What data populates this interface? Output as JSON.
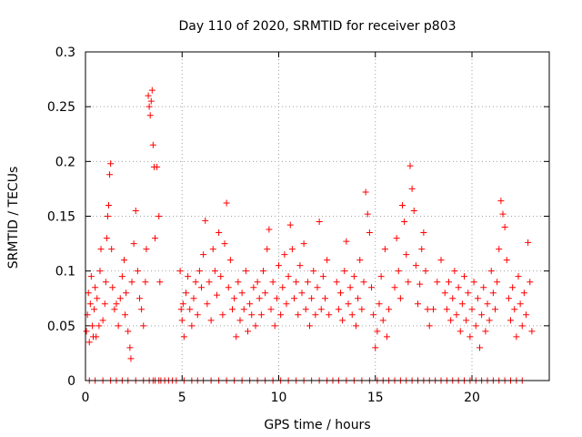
{
  "chart_data": {
    "type": "scatter",
    "title": "Day 110 of 2020, SRMTID for receiver p803",
    "xlabel": "GPS time / hours",
    "ylabel": "SRMTID / TECUs",
    "xlim": [
      0,
      24
    ],
    "ylim": [
      0,
      0.3
    ],
    "xticks": [
      0,
      5,
      10,
      15,
      20
    ],
    "xtick_labels": [
      "0",
      "5",
      "10",
      "15",
      "20"
    ],
    "yticks": [
      0,
      0.05,
      0.1,
      0.15,
      0.2,
      0.25,
      0.3
    ],
    "ytick_labels": [
      "0",
      "0.05",
      "0.1",
      "0.15",
      "0.2",
      "0.25",
      "0.3"
    ],
    "grid": true,
    "marker": "+",
    "color": "#ff0000",
    "series": [
      {
        "name": "SRMTID",
        "points": [
          [
            0.05,
            0.045
          ],
          [
            0.1,
            0.06
          ],
          [
            0.15,
            0.08
          ],
          [
            0.2,
            0.035
          ],
          [
            0.25,
            0.07
          ],
          [
            0.3,
            0.095
          ],
          [
            0.35,
            0.05
          ],
          [
            0.4,
            0.04
          ],
          [
            0.45,
            0.065
          ],
          [
            0.5,
            0.085
          ],
          [
            0.55,
            0.04
          ],
          [
            0.6,
            0.075
          ],
          [
            0.7,
            0.05
          ],
          [
            0.75,
            0.1
          ],
          [
            0.8,
            0.12
          ],
          [
            0.9,
            0.055
          ],
          [
            1.0,
            0.07
          ],
          [
            1.05,
            0.09
          ],
          [
            1.1,
            0.13
          ],
          [
            1.15,
            0.15
          ],
          [
            1.2,
            0.16
          ],
          [
            1.25,
            0.188
          ],
          [
            1.3,
            0.198
          ],
          [
            1.35,
            0.12
          ],
          [
            1.4,
            0.085
          ],
          [
            1.5,
            0.065
          ],
          [
            1.6,
            0.07
          ],
          [
            1.7,
            0.05
          ],
          [
            1.8,
            0.075
          ],
          [
            1.9,
            0.095
          ],
          [
            2.0,
            0.11
          ],
          [
            2.05,
            0.06
          ],
          [
            2.1,
            0.08
          ],
          [
            2.2,
            0.045
          ],
          [
            2.3,
            0.03
          ],
          [
            2.35,
            0.02
          ],
          [
            2.4,
            0.09
          ],
          [
            2.5,
            0.125
          ],
          [
            2.6,
            0.155
          ],
          [
            2.7,
            0.1
          ],
          [
            2.8,
            0.075
          ],
          [
            2.9,
            0.065
          ],
          [
            3.0,
            0.05
          ],
          [
            3.1,
            0.09
          ],
          [
            3.15,
            0.12
          ],
          [
            3.25,
            0.26
          ],
          [
            3.3,
            0.25
          ],
          [
            3.35,
            0.242
          ],
          [
            3.4,
            0.255
          ],
          [
            3.45,
            0.265
          ],
          [
            3.5,
            0.215
          ],
          [
            3.55,
            0.195
          ],
          [
            3.6,
            0.13
          ],
          [
            3.7,
            0.195
          ],
          [
            3.8,
            0.15
          ],
          [
            3.85,
            0.09
          ],
          [
            4.9,
            0.1
          ],
          [
            4.95,
            0.065
          ],
          [
            5.0,
            0.055
          ],
          [
            5.05,
            0.07
          ],
          [
            5.1,
            0.04
          ],
          [
            5.2,
            0.08
          ],
          [
            5.3,
            0.095
          ],
          [
            5.4,
            0.065
          ],
          [
            5.5,
            0.05
          ],
          [
            5.6,
            0.075
          ],
          [
            5.7,
            0.09
          ],
          [
            5.8,
            0.06
          ],
          [
            5.9,
            0.1
          ],
          [
            6.0,
            0.085
          ],
          [
            6.1,
            0.115
          ],
          [
            6.2,
            0.146
          ],
          [
            6.3,
            0.07
          ],
          [
            6.4,
            0.09
          ],
          [
            6.5,
            0.055
          ],
          [
            6.6,
            0.12
          ],
          [
            6.7,
            0.1
          ],
          [
            6.8,
            0.078
          ],
          [
            6.9,
            0.135
          ],
          [
            7.0,
            0.095
          ],
          [
            7.1,
            0.06
          ],
          [
            7.2,
            0.125
          ],
          [
            7.3,
            0.162
          ],
          [
            7.4,
            0.085
          ],
          [
            7.5,
            0.11
          ],
          [
            7.6,
            0.065
          ],
          [
            7.7,
            0.075
          ],
          [
            7.8,
            0.04
          ],
          [
            7.9,
            0.09
          ],
          [
            8.0,
            0.055
          ],
          [
            8.1,
            0.08
          ],
          [
            8.2,
            0.065
          ],
          [
            8.3,
            0.1
          ],
          [
            8.4,
            0.045
          ],
          [
            8.5,
            0.07
          ],
          [
            8.6,
            0.06
          ],
          [
            8.7,
            0.085
          ],
          [
            8.8,
            0.05
          ],
          [
            8.9,
            0.09
          ],
          [
            9.0,
            0.075
          ],
          [
            9.1,
            0.06
          ],
          [
            9.2,
            0.1
          ],
          [
            9.3,
            0.08
          ],
          [
            9.4,
            0.12
          ],
          [
            9.5,
            0.138
          ],
          [
            9.6,
            0.065
          ],
          [
            9.7,
            0.09
          ],
          [
            9.8,
            0.05
          ],
          [
            9.9,
            0.075
          ],
          [
            10.0,
            0.105
          ],
          [
            10.1,
            0.06
          ],
          [
            10.2,
            0.085
          ],
          [
            10.3,
            0.115
          ],
          [
            10.4,
            0.07
          ],
          [
            10.5,
            0.095
          ],
          [
            10.6,
            0.142
          ],
          [
            10.7,
            0.12
          ],
          [
            10.8,
            0.075
          ],
          [
            10.9,
            0.09
          ],
          [
            11.0,
            0.06
          ],
          [
            11.1,
            0.105
          ],
          [
            11.2,
            0.08
          ],
          [
            11.3,
            0.125
          ],
          [
            11.4,
            0.065
          ],
          [
            11.5,
            0.09
          ],
          [
            11.6,
            0.05
          ],
          [
            11.7,
            0.075
          ],
          [
            11.8,
            0.1
          ],
          [
            11.9,
            0.06
          ],
          [
            12.0,
            0.085
          ],
          [
            12.1,
            0.145
          ],
          [
            12.2,
            0.065
          ],
          [
            12.3,
            0.095
          ],
          [
            12.4,
            0.075
          ],
          [
            12.5,
            0.11
          ],
          [
            12.6,
            0.06
          ],
          [
            13.0,
            0.09
          ],
          [
            13.1,
            0.065
          ],
          [
            13.2,
            0.08
          ],
          [
            13.3,
            0.055
          ],
          [
            13.4,
            0.1
          ],
          [
            13.5,
            0.127
          ],
          [
            13.6,
            0.07
          ],
          [
            13.7,
            0.085
          ],
          [
            13.8,
            0.06
          ],
          [
            13.9,
            0.095
          ],
          [
            14.0,
            0.05
          ],
          [
            14.1,
            0.075
          ],
          [
            14.2,
            0.11
          ],
          [
            14.3,
            0.065
          ],
          [
            14.4,
            0.09
          ],
          [
            14.5,
            0.172
          ],
          [
            14.6,
            0.152
          ],
          [
            14.7,
            0.135
          ],
          [
            14.8,
            0.085
          ],
          [
            14.9,
            0.06
          ],
          [
            15.0,
            0.03
          ],
          [
            15.1,
            0.045
          ],
          [
            15.2,
            0.07
          ],
          [
            15.3,
            0.095
          ],
          [
            15.4,
            0.055
          ],
          [
            15.5,
            0.12
          ],
          [
            15.6,
            0.04
          ],
          [
            15.7,
            0.065
          ],
          [
            16.0,
            0.085
          ],
          [
            16.1,
            0.13
          ],
          [
            16.2,
            0.1
          ],
          [
            16.3,
            0.075
          ],
          [
            16.4,
            0.16
          ],
          [
            16.5,
            0.145
          ],
          [
            16.6,
            0.115
          ],
          [
            16.7,
            0.09
          ],
          [
            16.8,
            0.196
          ],
          [
            16.9,
            0.175
          ],
          [
            17.0,
            0.155
          ],
          [
            17.1,
            0.105
          ],
          [
            17.2,
            0.07
          ],
          [
            17.3,
            0.088
          ],
          [
            17.4,
            0.12
          ],
          [
            17.5,
            0.135
          ],
          [
            17.6,
            0.1
          ],
          [
            17.7,
            0.065
          ],
          [
            17.8,
            0.05
          ],
          [
            18.0,
            0.065
          ],
          [
            18.2,
            0.09
          ],
          [
            18.4,
            0.11
          ],
          [
            18.6,
            0.08
          ],
          [
            18.7,
            0.065
          ],
          [
            18.8,
            0.09
          ],
          [
            18.9,
            0.055
          ],
          [
            19.0,
            0.075
          ],
          [
            19.1,
            0.1
          ],
          [
            19.2,
            0.06
          ],
          [
            19.3,
            0.085
          ],
          [
            19.4,
            0.045
          ],
          [
            19.5,
            0.07
          ],
          [
            19.6,
            0.095
          ],
          [
            19.7,
            0.055
          ],
          [
            19.8,
            0.08
          ],
          [
            19.9,
            0.04
          ],
          [
            20.0,
            0.065
          ],
          [
            20.1,
            0.09
          ],
          [
            20.2,
            0.05
          ],
          [
            20.3,
            0.075
          ],
          [
            20.4,
            0.03
          ],
          [
            20.5,
            0.06
          ],
          [
            20.6,
            0.085
          ],
          [
            20.7,
            0.045
          ],
          [
            20.8,
            0.07
          ],
          [
            20.9,
            0.055
          ],
          [
            21.0,
            0.1
          ],
          [
            21.1,
            0.08
          ],
          [
            21.2,
            0.065
          ],
          [
            21.3,
            0.09
          ],
          [
            21.4,
            0.12
          ],
          [
            21.5,
            0.164
          ],
          [
            21.6,
            0.152
          ],
          [
            21.7,
            0.14
          ],
          [
            21.8,
            0.11
          ],
          [
            21.9,
            0.075
          ],
          [
            22.0,
            0.055
          ],
          [
            22.1,
            0.085
          ],
          [
            22.2,
            0.065
          ],
          [
            22.3,
            0.04
          ],
          [
            22.4,
            0.095
          ],
          [
            22.5,
            0.07
          ],
          [
            22.6,
            0.05
          ],
          [
            22.7,
            0.08
          ],
          [
            22.8,
            0.06
          ],
          [
            22.9,
            0.126
          ],
          [
            23.0,
            0.09
          ],
          [
            23.1,
            0.045
          ]
        ],
        "zero_points_x": [
          0.2,
          0.5,
          0.9,
          1.3,
          1.6,
          1.9,
          2.2,
          2.6,
          3.0,
          3.3,
          3.5,
          3.6,
          3.8,
          3.9,
          4.1,
          4.3,
          4.5,
          4.7,
          5.1,
          5.5,
          5.8,
          6.1,
          6.5,
          6.9,
          7.3,
          7.7,
          8.1,
          8.5,
          8.9,
          9.3,
          9.7,
          10.1,
          10.5,
          10.9,
          11.3,
          11.7,
          12.1,
          12.5,
          12.8,
          13.1,
          13.5,
          13.9,
          14.3,
          14.7,
          15.1,
          15.4,
          15.7,
          16.0,
          16.3,
          16.6,
          16.9,
          17.2,
          17.5,
          17.8,
          18.1,
          18.4,
          18.7,
          19.0,
          19.3,
          19.6,
          19.9,
          20.2,
          20.5,
          20.8,
          21.1,
          21.4,
          21.7,
          22.0,
          22.3,
          22.6
        ]
      }
    ]
  }
}
